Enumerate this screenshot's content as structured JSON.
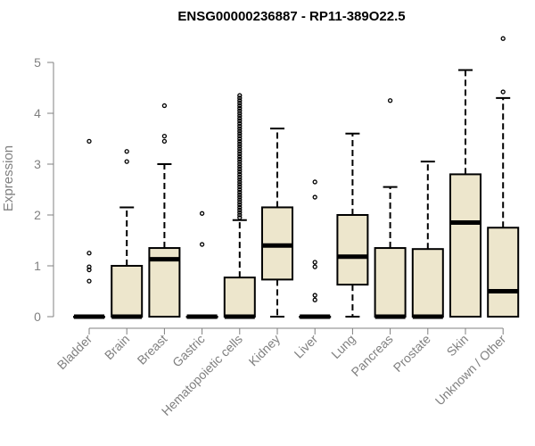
{
  "chart_data": {
    "type": "boxplot",
    "title": "ENSG00000236887 - RP11-389O22.5",
    "xlabel": "",
    "ylabel": "Expression",
    "ylim": [
      0,
      5
    ],
    "yticks": [
      "0",
      "1",
      "2",
      "3",
      "4",
      "5"
    ],
    "grid": false,
    "legend": "none",
    "box_color": "#ede6cc",
    "line_color": "#000000",
    "categories": [
      "Bladder",
      "Brain",
      "Breast",
      "Gastric",
      "Hematopoietic cells",
      "Kidney",
      "Liver",
      "Lung",
      "Pancreas",
      "Prostate",
      "Skin",
      "Unknown / Other"
    ],
    "boxes": [
      {
        "category": "Bladder",
        "whisker_low": 0,
        "q1": 0,
        "median": 0,
        "q3": 0,
        "whisker_high": 0,
        "outliers": [
          0.7,
          0.92,
          0.98,
          1.25,
          3.45
        ]
      },
      {
        "category": "Brain",
        "whisker_low": 0,
        "q1": 0,
        "median": 0,
        "q3": 1.0,
        "whisker_high": 2.15,
        "outliers": [
          3.05,
          3.25
        ]
      },
      {
        "category": "Breast",
        "whisker_low": 0,
        "q1": 0,
        "median": 1.13,
        "q3": 1.35,
        "whisker_high": 3.0,
        "outliers": [
          3.45,
          3.55,
          4.15
        ]
      },
      {
        "category": "Gastric",
        "whisker_low": 0,
        "q1": 0,
        "median": 0,
        "q3": 0,
        "whisker_high": 0,
        "outliers": [
          1.42,
          2.03
        ]
      },
      {
        "category": "Hematopoietic cells",
        "whisker_low": 0,
        "q1": 0,
        "median": 0,
        "q3": 0.77,
        "whisker_high": 1.9,
        "outliers": [
          1.95,
          2.0,
          2.05,
          2.1,
          2.15,
          2.2,
          2.25,
          2.3,
          2.35,
          2.4,
          2.45,
          2.5,
          2.55,
          2.6,
          2.65,
          2.7,
          2.75,
          2.8,
          2.85,
          2.9,
          2.95,
          3.0,
          3.05,
          3.1,
          3.15,
          3.2,
          3.25,
          3.3,
          3.35,
          3.4,
          3.45,
          3.5,
          3.55,
          3.6,
          3.65,
          3.7,
          3.75,
          3.8,
          3.85,
          3.9,
          3.95,
          4.0,
          4.05,
          4.1,
          4.15,
          4.2,
          4.25,
          4.3,
          4.35
        ]
      },
      {
        "category": "Kidney",
        "whisker_low": 0,
        "q1": 0.73,
        "median": 1.4,
        "q3": 2.15,
        "whisker_high": 3.7,
        "outliers": []
      },
      {
        "category": "Liver",
        "whisker_low": 0,
        "q1": 0,
        "median": 0,
        "q3": 0,
        "whisker_high": 0,
        "outliers": [
          0.33,
          0.42,
          0.98,
          1.07,
          2.35,
          2.65
        ]
      },
      {
        "category": "Lung",
        "whisker_low": 0,
        "q1": 0.63,
        "median": 1.18,
        "q3": 2.0,
        "whisker_high": 3.6,
        "outliers": []
      },
      {
        "category": "Pancreas",
        "whisker_low": 0,
        "q1": 0,
        "median": 0,
        "q3": 1.35,
        "whisker_high": 2.55,
        "outliers": [
          4.25
        ]
      },
      {
        "category": "Prostate",
        "whisker_low": 0,
        "q1": 0,
        "median": 0,
        "q3": 1.33,
        "whisker_high": 3.05,
        "outliers": []
      },
      {
        "category": "Skin",
        "whisker_low": 0,
        "q1": 0,
        "median": 1.85,
        "q3": 2.8,
        "whisker_high": 4.85,
        "outliers": []
      },
      {
        "category": "Unknown / Other",
        "whisker_low": 0,
        "q1": 0,
        "median": 0.5,
        "q3": 1.75,
        "whisker_high": 4.3,
        "outliers": [
          4.42,
          5.47
        ]
      }
    ]
  }
}
